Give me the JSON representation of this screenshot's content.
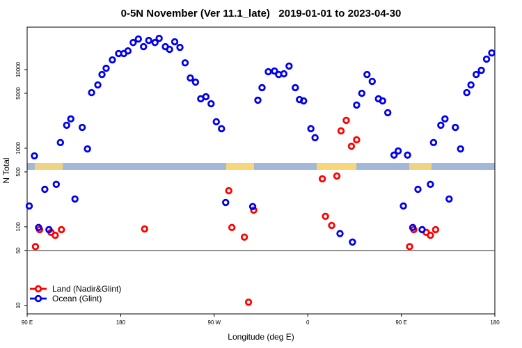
{
  "chart_data": {
    "type": "scatter",
    "title": "0-5N November (Ver 11.1_late)   2019-01-01 to 2023-04-30",
    "x_label": "Longitude (deg E)",
    "y_label": "N Total",
    "xlim": [
      90,
      540
    ],
    "xticks": [
      {
        "value": 90,
        "label": "90 E"
      },
      180,
      {
        "value": 270,
        "label": "90 W"
      },
      {
        "value": 360,
        "label": "0"
      },
      {
        "value": 450,
        "label": "90 E"
      },
      {
        "value": 540,
        "label": "180"
      }
    ],
    "ylim": [
      7.8,
      34700
    ],
    "log_y": true,
    "yticks": [
      10,
      50,
      100,
      500,
      1000,
      5000,
      10000
    ],
    "reference_line": 50,
    "legend": "bottomleft",
    "series": [
      {
        "name": "Land (Nadir&Glint)",
        "color": "#ff0000",
        "x": [
          98,
          102,
          113,
          117,
          123,
          203,
          284,
          287,
          299,
          303,
          308,
          374,
          377,
          383,
          388,
          392,
          397,
          402,
          407,
          458,
          462,
          474,
          478,
          483
        ],
        "values": [
          56,
          92,
          85,
          78,
          92,
          94,
          288,
          98,
          74,
          11,
          163,
          408,
          136,
          104,
          443,
          1660,
          2260,
          1060,
          1280,
          56,
          92,
          85,
          78,
          92
        ]
      },
      {
        "name": "Ocean (Glint)",
        "color": "#0000ee",
        "x": [
          92,
          97,
          101,
          107,
          111,
          118,
          122,
          128,
          132,
          136,
          143,
          148,
          152,
          158,
          162,
          166,
          172,
          178,
          183,
          187,
          192,
          197,
          202,
          207,
          213,
          217,
          223,
          227,
          232,
          237,
          242,
          247,
          252,
          257,
          262,
          267,
          272,
          277,
          281,
          307,
          312,
          316,
          322,
          328,
          332,
          337,
          342,
          348,
          352,
          356,
          363,
          367,
          391,
          403,
          407,
          412,
          417,
          422,
          428,
          432,
          437,
          443,
          447,
          452,
          456,
          461,
          466,
          470,
          478,
          481,
          488,
          492,
          496,
          502,
          507,
          513,
          517,
          522,
          527,
          532,
          537
        ],
        "values": [
          184,
          800,
          98,
          300,
          92,
          347,
          1180,
          1960,
          2360,
          226,
          1840,
          980,
          5100,
          6380,
          8670,
          10400,
          13300,
          16000,
          16000,
          17300,
          22100,
          24500,
          19600,
          23500,
          22100,
          25000,
          19600,
          18100,
          22600,
          19200,
          12200,
          7830,
          6930,
          4250,
          4520,
          3680,
          2170,
          1770,
          204,
          181,
          4080,
          5890,
          9400,
          9600,
          8670,
          8850,
          11100,
          5890,
          4160,
          4000,
          1770,
          1360,
          82,
          64,
          3540,
          5000,
          8670,
          7080,
          4250,
          4000,
          2830,
          817,
          923,
          184,
          817,
          98,
          300,
          92,
          347,
          1180,
          1960,
          2360,
          226,
          1840,
          980,
          5100,
          6380,
          8670,
          9800,
          13600,
          16300
        ]
      }
    ]
  }
}
